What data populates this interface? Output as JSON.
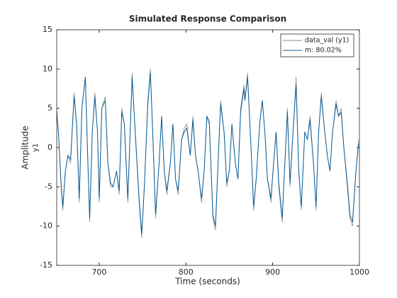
{
  "chart_data": {
    "type": "line",
    "title": "Simulated Response Comparison",
    "xlabel": "Time (seconds)",
    "ylabel": "Amplitude",
    "ylabel2": "y1",
    "x": [
      651,
      653,
      656,
      658,
      661,
      664,
      667,
      671,
      674,
      677,
      680,
      684,
      687,
      689,
      692,
      695,
      698,
      700,
      703,
      707,
      710,
      713,
      716,
      720,
      723,
      726,
      729,
      733,
      738,
      741,
      746,
      749,
      752,
      756,
      759,
      762,
      765,
      769,
      772,
      775,
      778,
      782,
      785,
      788,
      791,
      795,
      798,
      801,
      805,
      808,
      811,
      814,
      818,
      821,
      824,
      827,
      831,
      834,
      837,
      840,
      844,
      847,
      850,
      853,
      857,
      860,
      863,
      867,
      868,
      871,
      875,
      878,
      881,
      885,
      888,
      891,
      894,
      898,
      901,
      904,
      907,
      911,
      914,
      917,
      920,
      924,
      927,
      930,
      933,
      937,
      940,
      943,
      947,
      950,
      953,
      956,
      960,
      963,
      966,
      969,
      973,
      976,
      979,
      982,
      986,
      989,
      992,
      996,
      999
    ],
    "series": [
      {
        "name": "data_val (y1)",
        "color": "#8c8c8c",
        "values": [
          5,
          2,
          -5,
          -8,
          -3,
          -1,
          -2,
          7,
          3,
          -7,
          5,
          9,
          -2,
          -9.5,
          2,
          7,
          2,
          -7,
          5,
          6.5,
          -2,
          -5,
          -5,
          -3,
          -6,
          5,
          3,
          -7,
          9.5,
          3,
          -7,
          -11.5,
          -5,
          6,
          10,
          1,
          -9,
          -2,
          4,
          -3,
          -6,
          -2,
          3,
          -4,
          -6,
          1,
          2.5,
          3,
          -1,
          4,
          -1,
          -3,
          -7,
          -3,
          4,
          3.5,
          -9,
          -10.5,
          -2,
          6,
          2,
          -5,
          -3,
          3,
          -2,
          -4,
          5,
          8,
          6,
          9.5,
          0,
          -8,
          -4,
          3,
          6,
          2,
          -4,
          -7,
          -2,
          2,
          -5,
          -9.5,
          -2,
          5,
          -5,
          3,
          9,
          -3,
          -8,
          2,
          1,
          4,
          -2,
          -8,
          2,
          7,
          2,
          -1,
          -3,
          2,
          6,
          4,
          5,
          0,
          -5,
          -9,
          -10,
          -3,
          1
        ]
      },
      {
        "name": "m: 80.02%",
        "color": "#0b5f9a",
        "values": [
          4.5,
          2,
          -4.5,
          -7.5,
          -3,
          -1,
          -1.5,
          6.5,
          3,
          -6.5,
          5,
          9,
          -2,
          -9,
          2,
          6.5,
          2,
          -6.5,
          5,
          6,
          -2,
          -4.5,
          -5,
          -3,
          -5.5,
          4.5,
          3,
          -6.5,
          9,
          3,
          -6.5,
          -11,
          -5,
          5.5,
          9.5,
          1,
          -8.5,
          -2,
          4,
          -3,
          -5.5,
          -2,
          3,
          -4,
          -5.5,
          1,
          2,
          2.5,
          -1,
          3.5,
          -1,
          -3,
          -6.5,
          -3,
          4,
          3,
          -8.5,
          -10,
          -2,
          5.5,
          2,
          -4.5,
          -3,
          3,
          -2,
          -4,
          4.5,
          7.5,
          6,
          9,
          0,
          -7.5,
          -4,
          3,
          6,
          2,
          -4,
          -6.5,
          -2,
          2,
          -4.5,
          -9,
          -2,
          4.5,
          -4.5,
          3,
          8,
          -3,
          -7.5,
          2,
          1,
          3.5,
          -2,
          -7.5,
          2,
          6.5,
          2,
          -1,
          -3,
          2,
          5.5,
          4,
          4.5,
          0,
          -4.5,
          -8.5,
          -9.5,
          -3,
          0.5
        ]
      }
    ],
    "xlim": [
      651,
      1000
    ],
    "ylim": [
      -15,
      15
    ],
    "xticks": [
      700,
      800,
      900,
      1000
    ],
    "yticks": [
      -15,
      -10,
      -5,
      0,
      5,
      10,
      15
    ],
    "legend": "upper right",
    "grid": false
  }
}
